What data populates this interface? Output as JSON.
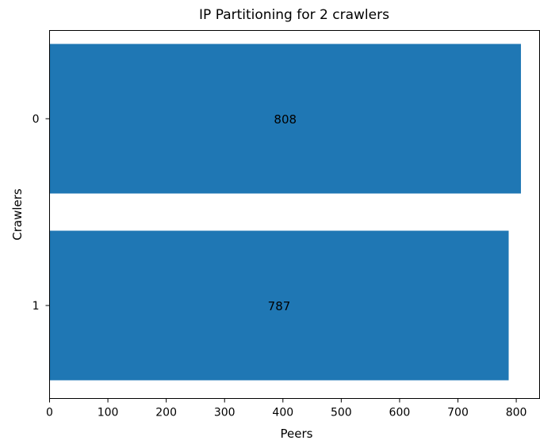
{
  "chart_data": {
    "type": "bar",
    "orientation": "horizontal",
    "title": "IP Partitioning for 2 crawlers",
    "xlabel": "Peers",
    "ylabel": "Crawlers",
    "categories": [
      "0",
      "1"
    ],
    "values": [
      808,
      787
    ],
    "data_labels": [
      "808",
      "787"
    ],
    "xlim": [
      0,
      840
    ],
    "xticks": [
      0,
      100,
      200,
      300,
      400,
      500,
      600,
      700,
      800
    ],
    "xtick_labels": [
      "0",
      "100",
      "200",
      "300",
      "400",
      "500",
      "600",
      "700",
      "800"
    ],
    "bar_color": "#1f77b4",
    "grid": false,
    "legend": "none"
  }
}
